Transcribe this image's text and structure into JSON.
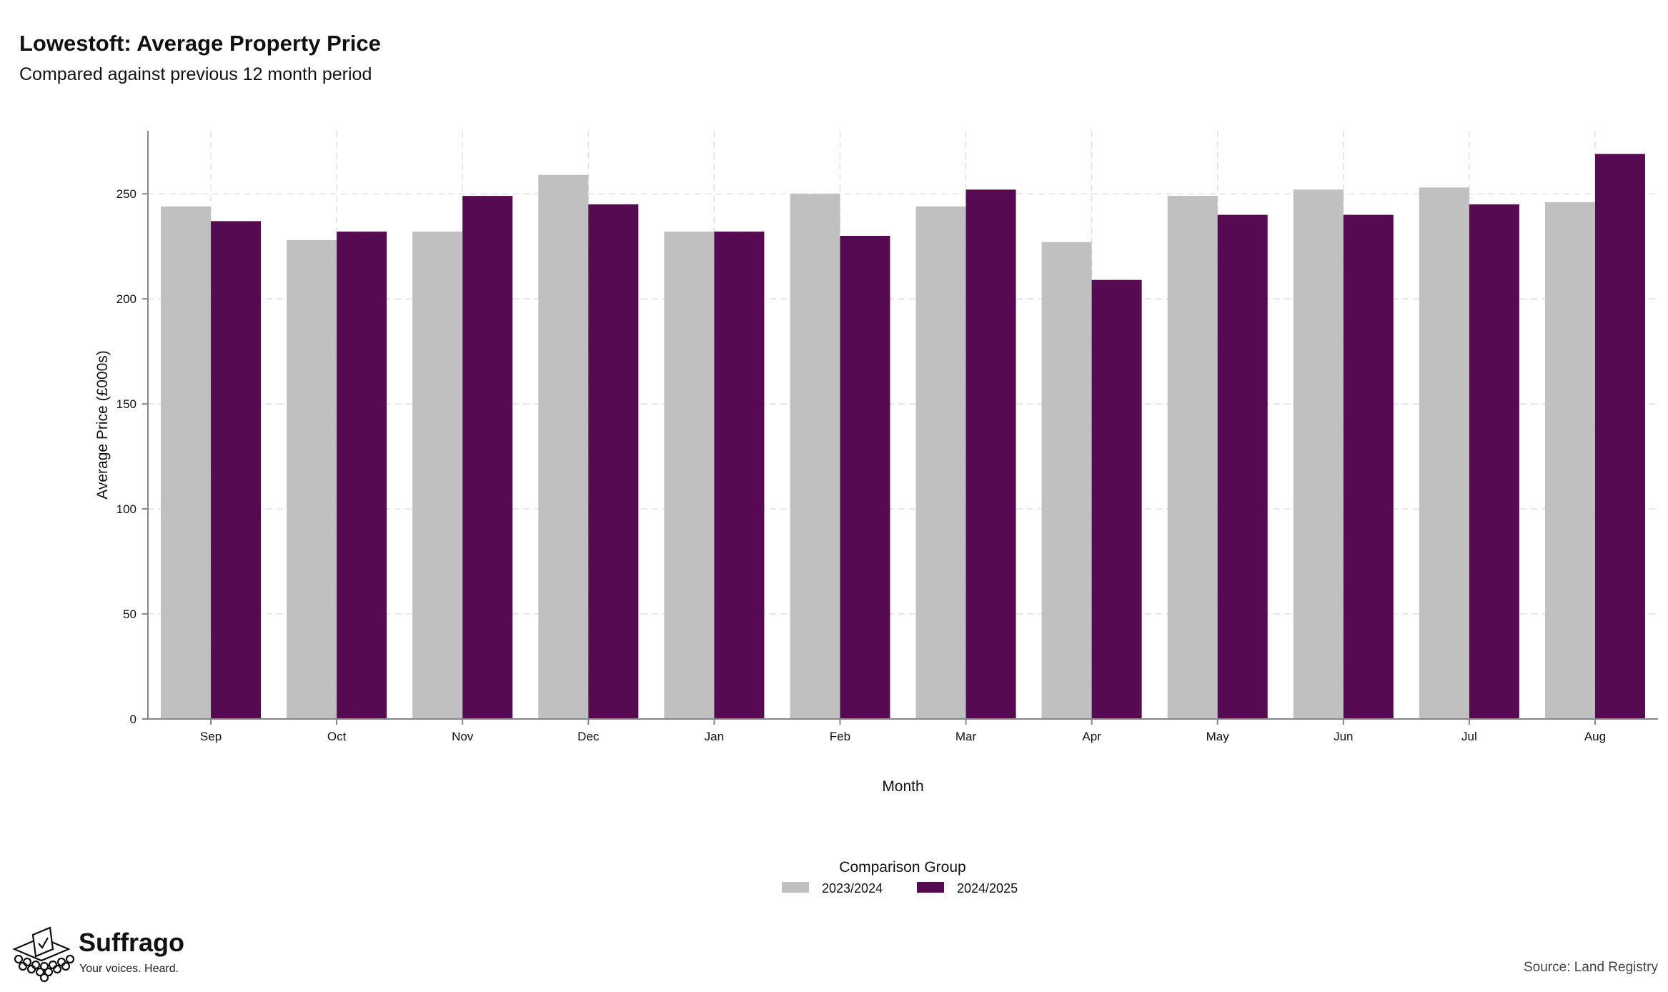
{
  "colors": {
    "series_2023_2024": "#c0c0c0",
    "series_2024_2025": "#550a52",
    "grid": "#d9d9d9",
    "axis": "#888888"
  },
  "chart_data": {
    "type": "bar",
    "title": "Lowestoft: Average Property Price",
    "subtitle": "Compared against previous 12 month period",
    "xlabel": "Month",
    "ylabel": "Average Price (£000s)",
    "ylim": [
      0,
      280
    ],
    "yticks": [
      0,
      50,
      100,
      150,
      200,
      250
    ],
    "grid": true,
    "legend": {
      "title": "Comparison Group",
      "position": "bottom"
    },
    "categories": [
      "Sep",
      "Oct",
      "Nov",
      "Dec",
      "Jan",
      "Feb",
      "Mar",
      "Apr",
      "May",
      "Jun",
      "Jul",
      "Aug"
    ],
    "series": [
      {
        "name": "2023/2024",
        "color": "#c0c0c0",
        "values": [
          244,
          228,
          232,
          259,
          232,
          250,
          244,
          227,
          249,
          252,
          253,
          246
        ]
      },
      {
        "name": "2024/2025",
        "color": "#550a52",
        "values": [
          237,
          232,
          249,
          245,
          232,
          230,
          252,
          209,
          240,
          240,
          245,
          269
        ]
      }
    ]
  },
  "branding": {
    "name": "Suffrago",
    "tagline": "Your voices. Heard.",
    "logo_icon": "ballot-box-icon"
  },
  "source": "Source: Land Registry"
}
